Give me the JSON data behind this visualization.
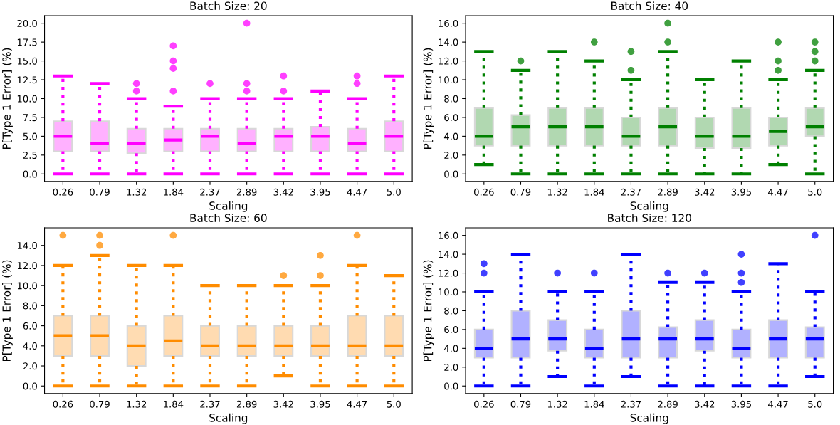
{
  "chart_data": [
    {
      "type": "box",
      "title": "Batch Size: 20",
      "xlabel": "Scaling",
      "ylabel": "P[Type 1 Error] (%)",
      "color": "#ff00ff",
      "categories": [
        "0.26",
        "0.79",
        "1.32",
        "1.84",
        "2.37",
        "2.89",
        "3.42",
        "3.95",
        "4.47",
        "5.0"
      ],
      "ylim": [
        -1,
        21
      ],
      "yticks": [
        {
          "value": 0,
          "label": "0.0"
        },
        {
          "value": 2.5,
          "label": "2.5"
        },
        {
          "value": 5,
          "label": "5.0"
        },
        {
          "value": 7.5,
          "label": "7.5"
        },
        {
          "value": 10,
          "label": "10.0"
        },
        {
          "value": 12.5,
          "label": "12.5"
        },
        {
          "value": 15,
          "label": "15.0"
        },
        {
          "value": 17.5,
          "label": "17.5"
        },
        {
          "value": 20,
          "label": "20.0"
        }
      ],
      "boxes": [
        {
          "low": 0,
          "q1": 3,
          "median": 5,
          "q3": 7,
          "high": 13
        },
        {
          "low": 0,
          "q1": 3,
          "median": 4,
          "q3": 7,
          "high": 12
        },
        {
          "low": 0,
          "q1": 2.75,
          "median": 4,
          "q3": 6,
          "high": 10,
          "outliers": [
            11,
            12
          ]
        },
        {
          "low": 0,
          "q1": 3,
          "median": 4.5,
          "q3": 6,
          "high": 9,
          "outliers": [
            11,
            14,
            15,
            17
          ]
        },
        {
          "low": 0,
          "q1": 3,
          "median": 5,
          "q3": 6,
          "high": 10,
          "outliers": [
            12
          ]
        },
        {
          "low": 0,
          "q1": 3,
          "median": 4,
          "q3": 6,
          "high": 10,
          "outliers": [
            11,
            12,
            20
          ]
        },
        {
          "low": 0,
          "q1": 3,
          "median": 5,
          "q3": 6,
          "high": 10,
          "outliers": [
            11,
            13
          ]
        },
        {
          "low": 0,
          "q1": 3,
          "median": 5,
          "q3": 6.25,
          "high": 11
        },
        {
          "low": 0,
          "q1": 3,
          "median": 4,
          "q3": 6,
          "high": 10,
          "outliers": [
            12,
            13
          ]
        },
        {
          "low": 0,
          "q1": 3,
          "median": 5,
          "q3": 7,
          "high": 13
        }
      ]
    },
    {
      "type": "box",
      "title": "Batch Size: 40",
      "xlabel": "Scaling",
      "ylabel": "P[Type 1 Error] (%)",
      "color": "#008000",
      "categories": [
        "0.26",
        "0.79",
        "1.32",
        "1.84",
        "2.37",
        "2.89",
        "3.42",
        "3.95",
        "4.47",
        "5.0"
      ],
      "ylim": [
        -0.8,
        16.8
      ],
      "yticks": [
        {
          "value": 0,
          "label": "0.0"
        },
        {
          "value": 2,
          "label": "2.0"
        },
        {
          "value": 4,
          "label": "4.0"
        },
        {
          "value": 6,
          "label": "6.0"
        },
        {
          "value": 8,
          "label": "8.0"
        },
        {
          "value": 10,
          "label": "10.0"
        },
        {
          "value": 12,
          "label": "12.0"
        },
        {
          "value": 14,
          "label": "14.0"
        },
        {
          "value": 16,
          "label": "16.0"
        }
      ],
      "boxes": [
        {
          "low": 1,
          "q1": 3,
          "median": 4,
          "q3": 7,
          "high": 13
        },
        {
          "low": 0,
          "q1": 3,
          "median": 5,
          "q3": 6.25,
          "high": 11,
          "outliers": [
            12
          ]
        },
        {
          "low": 0,
          "q1": 3,
          "median": 5,
          "q3": 7,
          "high": 13
        },
        {
          "low": 0,
          "q1": 3,
          "median": 5,
          "q3": 7,
          "high": 12,
          "outliers": [
            14
          ]
        },
        {
          "low": 0,
          "q1": 3,
          "median": 4,
          "q3": 6,
          "high": 10,
          "outliers": [
            11,
            13
          ]
        },
        {
          "low": 0,
          "q1": 3,
          "median": 5,
          "q3": 7,
          "high": 13,
          "outliers": [
            14,
            16
          ]
        },
        {
          "low": 0,
          "q1": 2.75,
          "median": 4,
          "q3": 6,
          "high": 10
        },
        {
          "low": 0,
          "q1": 2.75,
          "median": 4,
          "q3": 7,
          "high": 12
        },
        {
          "low": 1,
          "q1": 3,
          "median": 4.5,
          "q3": 6,
          "high": 10,
          "outliers": [
            11,
            12,
            14
          ]
        },
        {
          "low": 0,
          "q1": 4,
          "median": 5,
          "q3": 7,
          "high": 11,
          "outliers": [
            12,
            13,
            14
          ]
        }
      ]
    },
    {
      "type": "box",
      "title": "Batch Size: 60",
      "xlabel": "Scaling",
      "ylabel": "P[Type 1 Error] (%)",
      "color": "#ff8c00",
      "categories": [
        "0.26",
        "0.79",
        "1.32",
        "1.84",
        "2.37",
        "2.89",
        "3.42",
        "3.95",
        "4.47",
        "5.0"
      ],
      "ylim": [
        -0.75,
        15.75
      ],
      "yticks": [
        {
          "value": 0,
          "label": "0.0"
        },
        {
          "value": 2,
          "label": "2.0"
        },
        {
          "value": 4,
          "label": "4.0"
        },
        {
          "value": 6,
          "label": "6.0"
        },
        {
          "value": 8,
          "label": "8.0"
        },
        {
          "value": 10,
          "label": "10.0"
        },
        {
          "value": 12,
          "label": "12.0"
        },
        {
          "value": 14,
          "label": "14.0"
        }
      ],
      "boxes": [
        {
          "low": 0,
          "q1": 3,
          "median": 5,
          "q3": 7,
          "high": 12,
          "outliers": [
            15
          ]
        },
        {
          "low": 0,
          "q1": 3,
          "median": 5,
          "q3": 7,
          "high": 13,
          "outliers": [
            14,
            15
          ]
        },
        {
          "low": 0,
          "q1": 2,
          "median": 4,
          "q3": 6,
          "high": 12
        },
        {
          "low": 0,
          "q1": 3,
          "median": 4.5,
          "q3": 7,
          "high": 12,
          "outliers": [
            15
          ]
        },
        {
          "low": 0,
          "q1": 3,
          "median": 4,
          "q3": 6,
          "high": 10
        },
        {
          "low": 0,
          "q1": 3,
          "median": 4,
          "q3": 6,
          "high": 10
        },
        {
          "low": 1,
          "q1": 3,
          "median": 4,
          "q3": 6,
          "high": 10,
          "outliers": [
            11
          ]
        },
        {
          "low": 0,
          "q1": 3,
          "median": 4,
          "q3": 6,
          "high": 10,
          "outliers": [
            11,
            13
          ]
        },
        {
          "low": 0,
          "q1": 3,
          "median": 4,
          "q3": 7,
          "high": 12,
          "outliers": [
            15
          ]
        },
        {
          "low": 0,
          "q1": 3,
          "median": 4,
          "q3": 7,
          "high": 11
        }
      ]
    },
    {
      "type": "box",
      "title": "Batch Size: 120",
      "xlabel": "Scaling",
      "ylabel": "P[Type 1 Error] (%)",
      "color": "#0000ff",
      "categories": [
        "0.26",
        "0.79",
        "1.32",
        "1.84",
        "2.37",
        "2.89",
        "3.42",
        "3.95",
        "4.47",
        "5.0"
      ],
      "ylim": [
        -0.8,
        16.8
      ],
      "yticks": [
        {
          "value": 0,
          "label": "0.0"
        },
        {
          "value": 2,
          "label": "2.0"
        },
        {
          "value": 4,
          "label": "4.0"
        },
        {
          "value": 6,
          "label": "6.0"
        },
        {
          "value": 8,
          "label": "8.0"
        },
        {
          "value": 10,
          "label": "10.0"
        },
        {
          "value": 12,
          "label": "12.0"
        },
        {
          "value": 14,
          "label": "14.0"
        },
        {
          "value": 16,
          "label": "16.0"
        }
      ],
      "boxes": [
        {
          "low": 0,
          "q1": 3,
          "median": 4,
          "q3": 6,
          "high": 10,
          "outliers": [
            12,
            13
          ]
        },
        {
          "low": 0,
          "q1": 3,
          "median": 5,
          "q3": 8,
          "high": 14
        },
        {
          "low": 1,
          "q1": 3.75,
          "median": 5,
          "q3": 7,
          "high": 10,
          "outliers": [
            12
          ]
        },
        {
          "low": 0,
          "q1": 3,
          "median": 4,
          "q3": 6,
          "high": 10,
          "outliers": [
            12
          ]
        },
        {
          "low": 1,
          "q1": 3,
          "median": 5,
          "q3": 8,
          "high": 14
        },
        {
          "low": 0,
          "q1": 3,
          "median": 5,
          "q3": 6.25,
          "high": 11,
          "outliers": [
            12
          ]
        },
        {
          "low": 0,
          "q1": 3.75,
          "median": 5,
          "q3": 7,
          "high": 11,
          "outliers": [
            12
          ]
        },
        {
          "low": 0,
          "q1": 3,
          "median": 4,
          "q3": 6,
          "high": 10,
          "outliers": [
            11,
            12,
            14
          ]
        },
        {
          "low": 0,
          "q1": 3,
          "median": 5,
          "q3": 7,
          "high": 13
        },
        {
          "low": 1,
          "q1": 3,
          "median": 5,
          "q3": 6.25,
          "high": 10,
          "outliers": [
            16
          ]
        }
      ]
    }
  ]
}
